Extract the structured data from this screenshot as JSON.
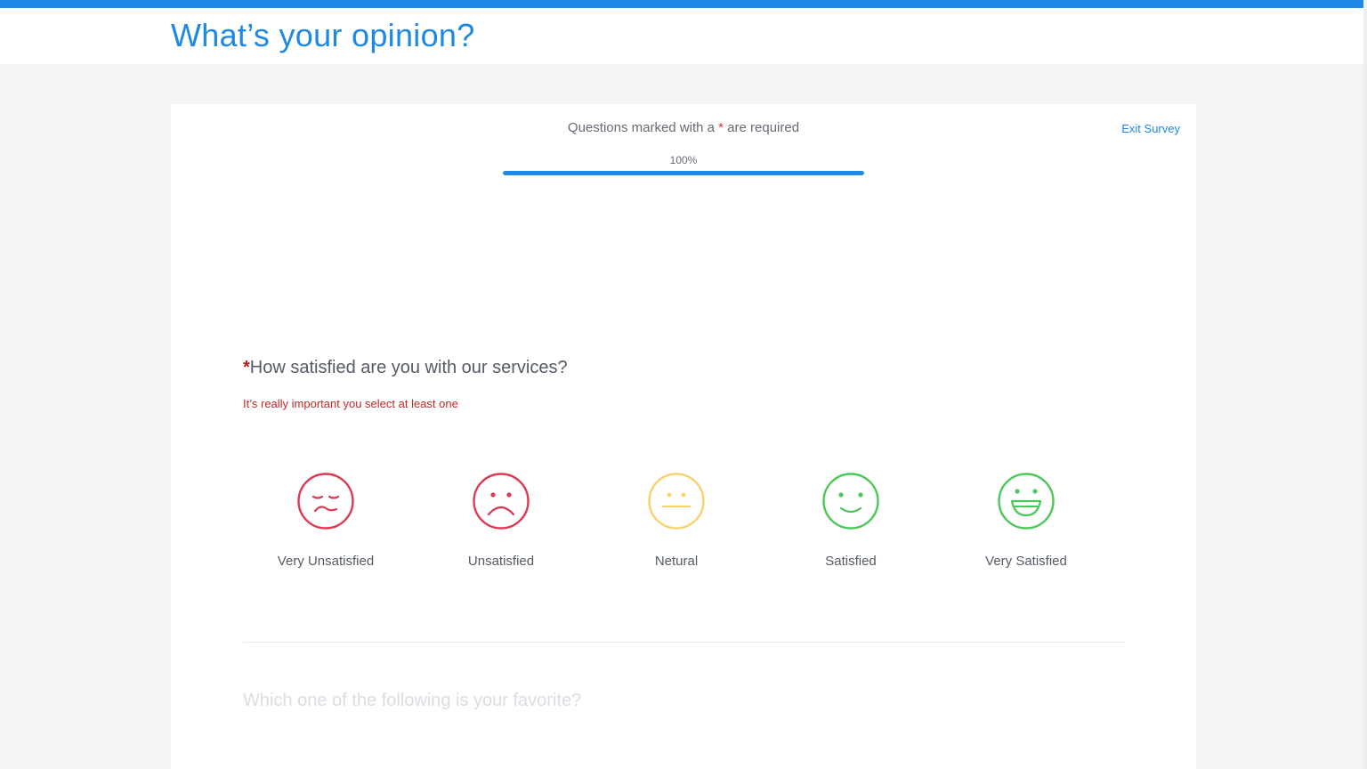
{
  "header": {
    "title": "What’s your opinion?"
  },
  "survey": {
    "required_note_prefix": "Questions marked with a ",
    "required_star": "*",
    "required_note_suffix": " are required",
    "exit_label": "Exit Survey",
    "progress_label": "100%",
    "progress_percent": 100
  },
  "question1": {
    "star": "*",
    "text": "How satisfied are you with our services?",
    "error": "It’s really important you select at least one",
    "options": [
      {
        "label": "Very Unsatisfied",
        "icon": "very-unsatisfied-face-icon",
        "color": "#dc3a54"
      },
      {
        "label": "Unsatisfied",
        "icon": "unsatisfied-face-icon",
        "color": "#dc3a54"
      },
      {
        "label": "Netural",
        "icon": "neutral-face-icon",
        "color": "#f7d36b"
      },
      {
        "label": "Satisfied",
        "icon": "satisfied-face-icon",
        "color": "#4cc85a"
      },
      {
        "label": "Very Satisfied",
        "icon": "very-satisfied-face-icon",
        "color": "#4cc85a"
      }
    ]
  },
  "question2": {
    "text": "Which one of the following is your favorite?"
  },
  "colors": {
    "accent": "#1e88e5",
    "error": "#c62828"
  }
}
